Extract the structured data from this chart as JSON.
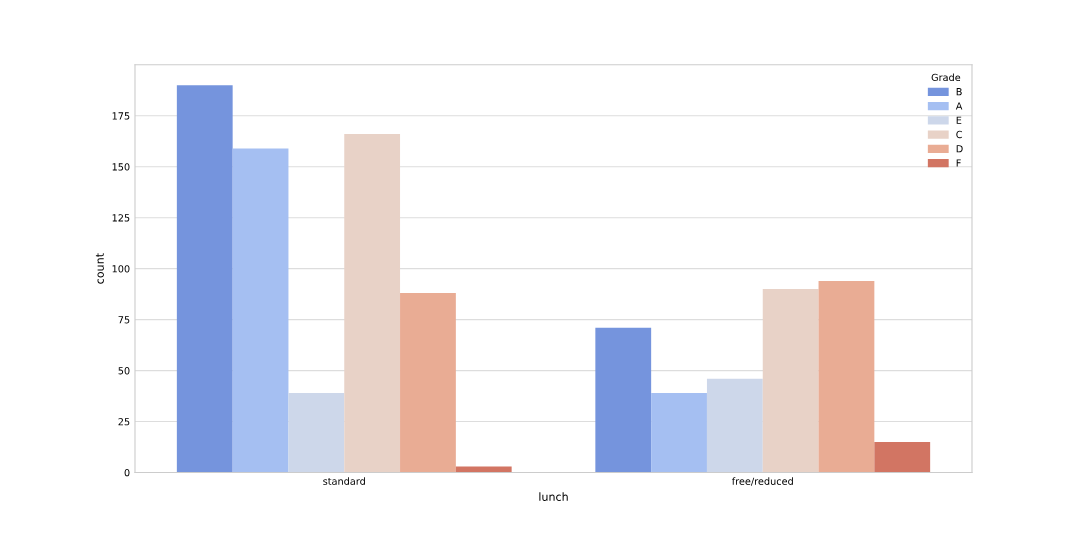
{
  "chart_data": {
    "type": "bar",
    "xlabel": "lunch",
    "ylabel": "count",
    "legend_title": "Grade",
    "categories": [
      "standard",
      "free/reduced"
    ],
    "series": [
      {
        "name": "B",
        "color": "#7594dd",
        "values": [
          190,
          71
        ]
      },
      {
        "name": "A",
        "color": "#a5bff2",
        "values": [
          159,
          39
        ]
      },
      {
        "name": "E",
        "color": "#cdd7ea",
        "values": [
          39,
          46
        ]
      },
      {
        "name": "C",
        "color": "#e8d2c7",
        "values": [
          166,
          90
        ]
      },
      {
        "name": "D",
        "color": "#e9ac94",
        "values": [
          88,
          94
        ]
      },
      {
        "name": "F",
        "color": "#d27563",
        "values": [
          3,
          15
        ]
      }
    ],
    "ylim": [
      0,
      200
    ],
    "yticks": [
      0,
      25,
      50,
      75,
      100,
      125,
      150,
      175
    ],
    "grid": "y",
    "legend": "top right"
  }
}
